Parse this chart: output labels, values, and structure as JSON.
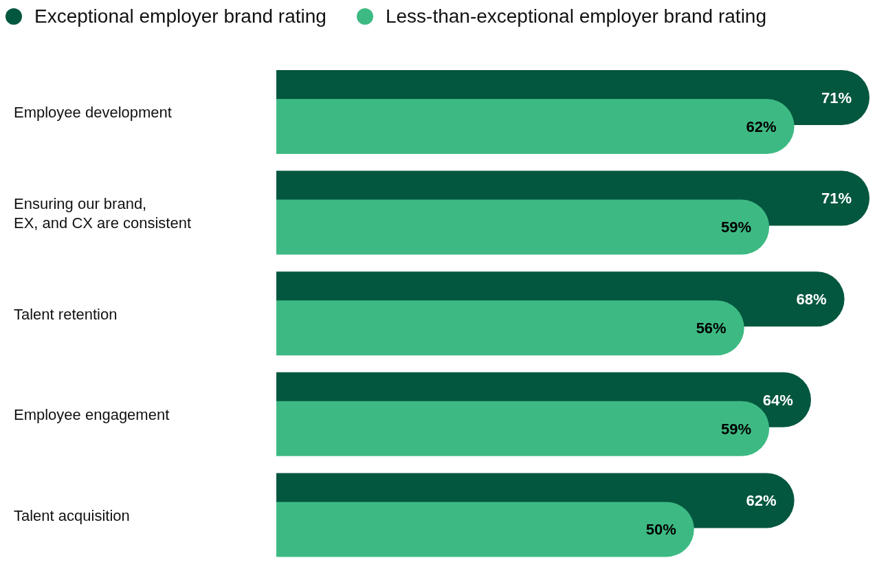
{
  "chart_data": {
    "type": "bar",
    "orientation": "horizontal",
    "categories": [
      "Employee development",
      "Ensuring our brand, EX, and CX are consistent",
      "Talent retention",
      "Employee engagement",
      "Talent acquisition"
    ],
    "series": [
      {
        "name": "Exceptional employer brand rating",
        "color": "#03573f",
        "values": [
          71,
          71,
          68,
          64,
          62
        ],
        "value_labels": [
          "71%",
          "71%",
          "68%",
          "64%",
          "62%"
        ]
      },
      {
        "name": "Less-than-exceptional employer brand rating",
        "color": "#3dba83",
        "values": [
          62,
          59,
          56,
          59,
          50
        ],
        "value_labels": [
          "62%",
          "59%",
          "56%",
          "59%",
          "50%"
        ]
      }
    ],
    "legend": "top left",
    "grid": false
  }
}
